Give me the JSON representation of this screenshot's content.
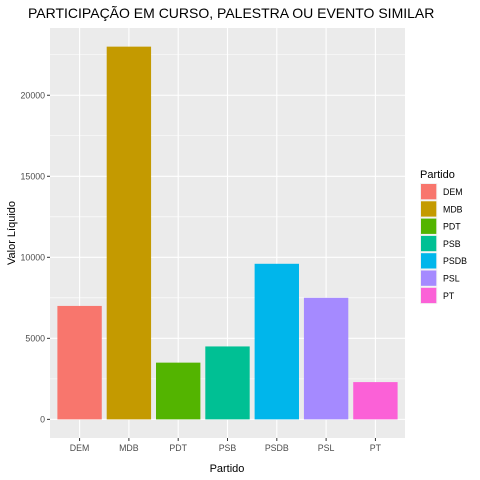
{
  "chart_data": {
    "type": "bar",
    "title": "PARTICIPAÇÃO EM CURSO, PALESTRA OU EVENTO SIMILAR",
    "xlabel": "Partido",
    "ylabel": "Valor Líquido",
    "categories": [
      "DEM",
      "MDB",
      "PDT",
      "PSB",
      "PSDB",
      "PSL",
      "PT"
    ],
    "values": [
      7000,
      23000,
      3500,
      4500,
      9600,
      7500,
      2300
    ],
    "colors": [
      "#F8766D",
      "#C49A00",
      "#53B400",
      "#00C094",
      "#00B6EB",
      "#A58AFF",
      "#FB61D7"
    ],
    "ylim": [
      0,
      24000
    ],
    "yticks": [
      0,
      5000,
      10000,
      15000,
      20000
    ],
    "ytick_labels": [
      "0",
      "5000",
      "10000",
      "15000",
      "20000"
    ],
    "grid": true,
    "legend": {
      "title": "Partido",
      "position": "right",
      "entries": [
        "DEM",
        "MDB",
        "PDT",
        "PSB",
        "PSDB",
        "PSL",
        "PT"
      ]
    },
    "background": "#EBEBEB",
    "grid_color": "#FFFFFF"
  }
}
